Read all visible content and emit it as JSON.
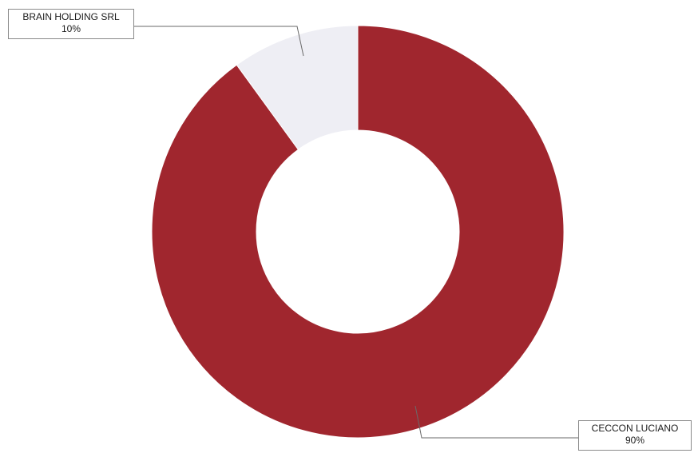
{
  "chart_data": {
    "type": "pie",
    "subtype": "donut",
    "title": "",
    "categories": [
      "BRAIN HOLDING SRL",
      "CECCON LUCIANO"
    ],
    "values": [
      10,
      90
    ],
    "value_labels": [
      "10%",
      "90%"
    ],
    "colors": [
      "#eeeef4",
      "#a0262e"
    ],
    "start_angle_deg": 0,
    "direction": "counterclockwise",
    "legend": "none"
  }
}
